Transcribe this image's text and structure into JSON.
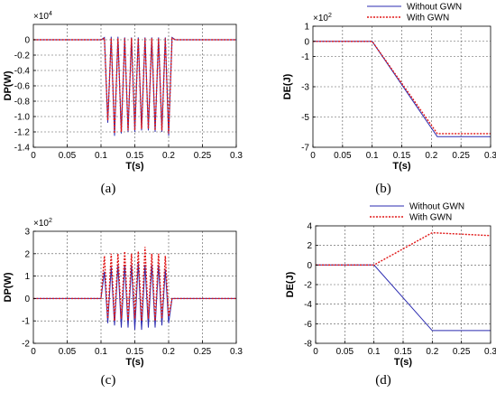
{
  "colors": {
    "without": "#2b2bb0",
    "with": "#e01515",
    "grid": "#555555",
    "axis": "#000000"
  },
  "legend": {
    "without_label": "Without GWN",
    "with_label": "With GWN"
  },
  "chart_data": [
    {
      "id": "a",
      "caption": "(a)",
      "type": "line",
      "xlabel": "T(s)",
      "ylabel": "DP(W)",
      "exponent": "×10",
      "exponent_power": "4",
      "xlim": [
        0,
        0.3
      ],
      "ylim": [
        -1.4,
        0.2
      ],
      "xticks": [
        0,
        0.05,
        0.1,
        0.15,
        0.2,
        0.25,
        0.3
      ],
      "xtick_labels": [
        "0",
        "0.05",
        "0.1",
        "0.15",
        "0.2",
        "0.25",
        "0.3"
      ],
      "yticks": [
        0,
        -0.2,
        -0.4,
        -0.6,
        -0.8,
        -1.0,
        -1.2,
        -1.4
      ],
      "ytick_labels": [
        "0",
        "-0.2",
        "-0.4",
        "-0.6",
        "-0.8",
        "-1.0",
        "-1.2",
        "-1.4"
      ],
      "grid": true,
      "legend": false,
      "series": [
        {
          "name": "Without GWN",
          "style": "solid",
          "x": [
            0,
            0.1,
            0.105,
            0.11,
            0.115,
            0.12,
            0.125,
            0.13,
            0.135,
            0.14,
            0.145,
            0.15,
            0.155,
            0.16,
            0.165,
            0.17,
            0.175,
            0.18,
            0.185,
            0.19,
            0.195,
            0.2,
            0.205,
            0.21,
            0.3
          ],
          "y": [
            0,
            0,
            0.03,
            -1.08,
            0.04,
            -1.25,
            0.04,
            -1.22,
            0.03,
            -1.2,
            0.03,
            -1.2,
            0.03,
            -1.18,
            0.03,
            -1.18,
            0.03,
            -1.2,
            0.03,
            -1.2,
            0.03,
            -1.25,
            0.03,
            0,
            0
          ]
        },
        {
          "name": "With GWN",
          "style": "dotted",
          "x": [
            0,
            0.1,
            0.105,
            0.11,
            0.115,
            0.12,
            0.125,
            0.13,
            0.135,
            0.14,
            0.145,
            0.15,
            0.155,
            0.16,
            0.165,
            0.17,
            0.175,
            0.18,
            0.185,
            0.19,
            0.195,
            0.2,
            0.205,
            0.21,
            0.3
          ],
          "y": [
            0,
            0,
            0.02,
            -1.05,
            0.02,
            -1.22,
            0.02,
            -1.2,
            0.02,
            -1.18,
            0.02,
            -1.18,
            0.02,
            -1.16,
            0.02,
            -1.16,
            0.02,
            -1.18,
            0.02,
            -1.18,
            0.02,
            -1.22,
            0.02,
            0,
            0
          ]
        }
      ]
    },
    {
      "id": "b",
      "caption": "(b)",
      "type": "line",
      "xlabel": "T(s)",
      "ylabel": "DE(J)",
      "exponent": "×10",
      "exponent_power": "2",
      "xlim": [
        0,
        0.3
      ],
      "ylim": [
        -7,
        1
      ],
      "xticks": [
        0,
        0.05,
        0.1,
        0.15,
        0.2,
        0.25,
        0.3
      ],
      "xtick_labels": [
        "0",
        "0.05",
        "0.1",
        "0.15",
        "0.2",
        "0.25",
        "0.3"
      ],
      "yticks": [
        1,
        0,
        -1,
        -3,
        -5,
        -7
      ],
      "ytick_labels": [
        "1",
        "0",
        "-1",
        "-3",
        "-5",
        "-7"
      ],
      "grid": true,
      "legend": true,
      "series": [
        {
          "name": "Without GWN",
          "style": "solid",
          "x": [
            0,
            0.1,
            0.21,
            0.3
          ],
          "y": [
            0,
            0,
            -6.3,
            -6.3
          ]
        },
        {
          "name": "With GWN",
          "style": "dotted",
          "x": [
            0,
            0.1,
            0.21,
            0.3
          ],
          "y": [
            0,
            0,
            -6.1,
            -6.1
          ]
        }
      ]
    },
    {
      "id": "c",
      "caption": "(c)",
      "type": "line",
      "xlabel": "T(s)",
      "ylabel": "DP(W)",
      "exponent": "×10",
      "exponent_power": "2",
      "xlim": [
        0,
        0.3
      ],
      "ylim": [
        -2,
        3
      ],
      "xticks": [
        0,
        0.05,
        0.1,
        0.15,
        0.2,
        0.25,
        0.3
      ],
      "xtick_labels": [
        "0",
        "0.05",
        "0.1",
        "0.15",
        "0.2",
        "0.25",
        "0.3"
      ],
      "yticks": [
        3,
        2,
        1,
        0,
        -1,
        -2
      ],
      "ytick_labels": [
        "3",
        "2",
        "1",
        "0",
        "-1",
        "-2"
      ],
      "grid": true,
      "legend": false,
      "series": [
        {
          "name": "Without GWN",
          "style": "solid",
          "x": [
            0,
            0.1,
            0.105,
            0.11,
            0.115,
            0.12,
            0.125,
            0.13,
            0.135,
            0.14,
            0.145,
            0.15,
            0.155,
            0.16,
            0.165,
            0.17,
            0.175,
            0.18,
            0.185,
            0.19,
            0.195,
            0.2,
            0.205,
            0.3
          ],
          "y": [
            0,
            0,
            1.2,
            -1.1,
            1.4,
            -1.2,
            1.5,
            -1.3,
            1.5,
            -1.3,
            1.5,
            -1.4,
            1.6,
            -1.4,
            1.5,
            -1.3,
            1.5,
            -1.3,
            1.5,
            -1.2,
            1.3,
            -1.1,
            0,
            0
          ]
        },
        {
          "name": "With GWN",
          "style": "dotted",
          "x": [
            0,
            0.1,
            0.105,
            0.11,
            0.115,
            0.12,
            0.125,
            0.13,
            0.135,
            0.14,
            0.145,
            0.15,
            0.155,
            0.16,
            0.165,
            0.17,
            0.175,
            0.18,
            0.185,
            0.19,
            0.195,
            0.2,
            0.205,
            0.3
          ],
          "y": [
            0,
            0,
            1.9,
            -0.9,
            2.0,
            -1.0,
            2.0,
            -0.9,
            2.1,
            -1.0,
            2.0,
            -0.9,
            2.1,
            -1.0,
            2.3,
            -0.9,
            2.0,
            -1.0,
            2.0,
            -0.9,
            1.9,
            -0.8,
            0,
            0
          ]
        }
      ]
    },
    {
      "id": "d",
      "caption": "(d)",
      "type": "line",
      "xlabel": "T(s)",
      "ylabel": "DE(J)",
      "exponent": "",
      "exponent_power": "",
      "xlim": [
        0,
        0.3
      ],
      "ylim": [
        -8,
        4
      ],
      "xticks": [
        0,
        0.05,
        0.1,
        0.15,
        0.2,
        0.25,
        0.3
      ],
      "xtick_labels": [
        "0",
        "0.05",
        "0.1",
        "0.15",
        "0.2",
        "0.25",
        "0.3"
      ],
      "yticks": [
        4,
        2,
        0,
        -2,
        -4,
        -6,
        -8
      ],
      "ytick_labels": [
        "4",
        "2",
        "0",
        "-2",
        "-4",
        "-6",
        "-8"
      ],
      "grid": true,
      "legend": true,
      "series": [
        {
          "name": "Without GWN",
          "style": "solid",
          "x": [
            0,
            0.1,
            0.2,
            0.3
          ],
          "y": [
            0,
            0,
            -6.7,
            -6.7
          ]
        },
        {
          "name": "With GWN",
          "style": "dotted",
          "x": [
            0,
            0.1,
            0.2,
            0.3
          ],
          "y": [
            0,
            0,
            3.3,
            3.0
          ]
        }
      ]
    }
  ]
}
